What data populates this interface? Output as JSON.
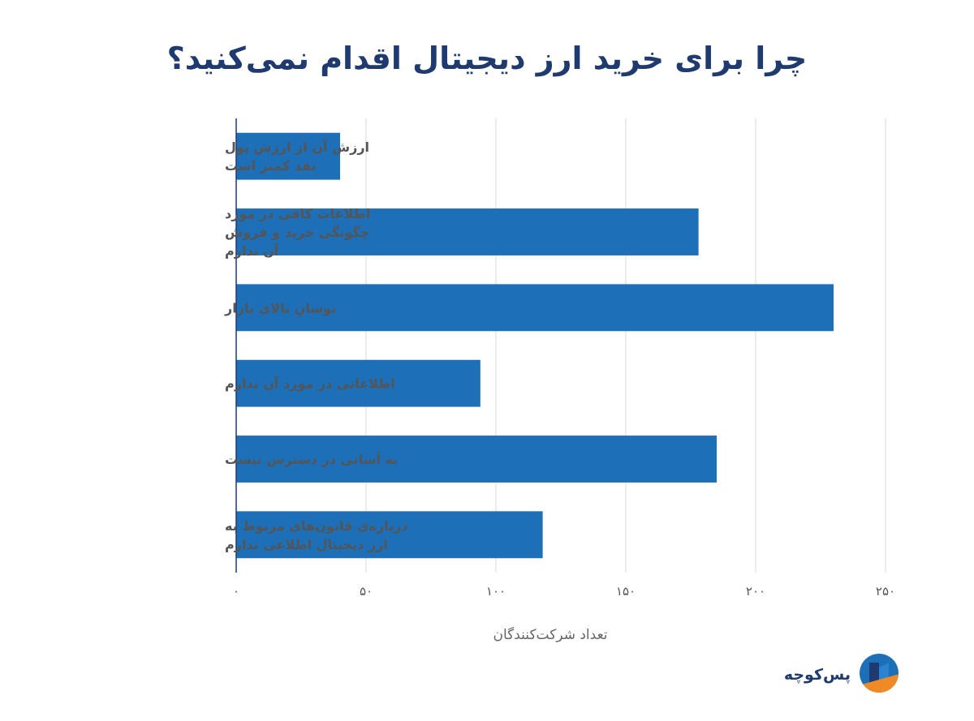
{
  "title": "چرا برای خرید ارز دیجیتال اقدام نمی‌کنید؟",
  "brand": {
    "name": "پس‌کوچه",
    "logo_icon": "paskoocheh-logo-icon",
    "colors": {
      "navy": "#1f3a6e",
      "blue": "#1d6fb8",
      "orange": "#f08a24"
    }
  },
  "chart_data": {
    "type": "bar",
    "orientation": "horizontal",
    "categories": [
      [
        "ارزش آن از ارزش پول",
        "نقد کمتر است"
      ],
      [
        "اطلاعات کافی در مورد",
        "چگونگی خرید و فروش",
        "آن ندارم"
      ],
      [
        "نوسانِ بالای بازار"
      ],
      [
        "اطلاعاتی در مورد آن ندارم"
      ],
      [
        "به آسانی در دسترس نیست"
      ],
      [
        "درباره‌ی قانون‌های مربوط به",
        "ارز دیجیتال اطلاعی ندارم"
      ]
    ],
    "values": [
      40,
      178,
      230,
      94,
      185,
      118
    ],
    "xlabel": "تعداد شرکت‌کنندگان",
    "ylabel": "",
    "xlim": [
      0,
      250
    ],
    "xticks": [
      0,
      50,
      100,
      150,
      200,
      250
    ],
    "xtick_labels": [
      "۰",
      "۵۰",
      "۱۰۰",
      "۱۵۰",
      "۲۰۰",
      "۲۵۰"
    ],
    "grid": true,
    "bar_color": "#1d6fb8",
    "grid_color": "#d9d9d9",
    "axis_color": "#1f3a6e"
  }
}
